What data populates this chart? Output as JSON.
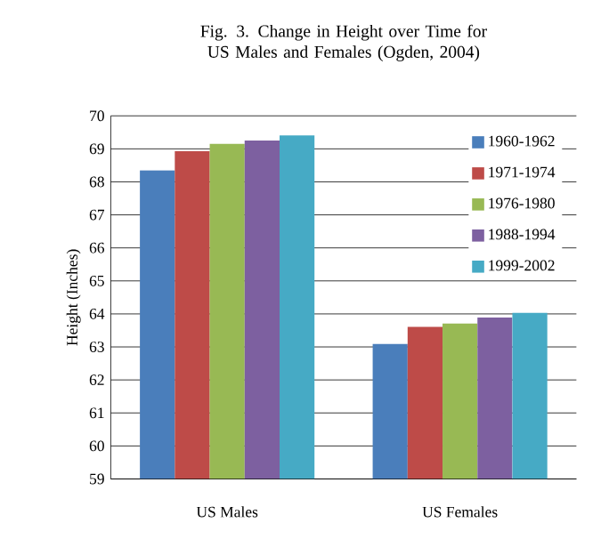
{
  "chart_data": {
    "type": "bar",
    "title": "Fig. 3. Change in Height over Time for US Males and Females (Ogden, 2004)",
    "ylabel": "Height (Inches)",
    "categories": [
      "US Males",
      "US Females"
    ],
    "series": [
      {
        "name": "1960-1962",
        "color": "#4a7ebb",
        "values": [
          68.35,
          63.09
        ]
      },
      {
        "name": "1971-1974",
        "color": "#be4b48",
        "values": [
          68.93,
          63.61
        ]
      },
      {
        "name": "1976-1980",
        "color": "#98b954",
        "values": [
          69.15,
          63.71
        ]
      },
      {
        "name": "1988-1994",
        "color": "#7d60a0",
        "values": [
          69.25,
          63.89
        ]
      },
      {
        "name": "1999-2002",
        "color": "#46aac5",
        "values": [
          69.41,
          64.03
        ]
      }
    ],
    "ylim": [
      59,
      70
    ],
    "yticks": [
      59,
      60,
      61,
      62,
      63,
      64,
      65,
      66,
      67,
      68,
      69,
      70
    ],
    "grid": "y",
    "legend": "right"
  }
}
